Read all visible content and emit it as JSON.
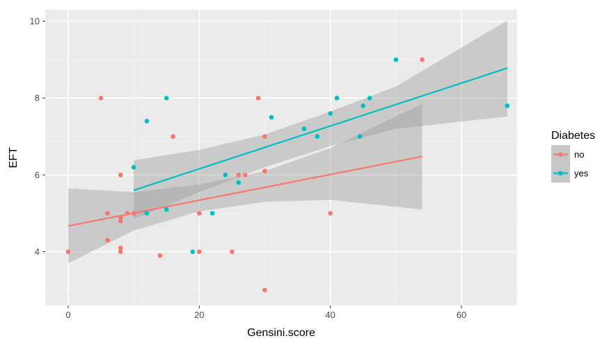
{
  "chart_data": {
    "type": "scatter",
    "xlabel": "Gensini.score",
    "ylabel": "EFT",
    "xlim": [
      -3.5,
      68.5
    ],
    "ylim": [
      2.6,
      10.3
    ],
    "x_ticks": [
      0,
      20,
      40,
      60
    ],
    "y_ticks": [
      4,
      6,
      8,
      10
    ],
    "grid": true,
    "legend": {
      "title": "Diabetes",
      "placement": "right"
    },
    "colors": {
      "no": "#F8766D",
      "yes": "#00BFC4",
      "panel": "#EBEBEB",
      "band": "#999999"
    },
    "series": [
      {
        "name": "no",
        "points": [
          [
            0,
            4.0
          ],
          [
            5,
            8.0
          ],
          [
            6,
            5.0
          ],
          [
            6,
            4.3
          ],
          [
            8,
            6.0
          ],
          [
            8,
            4.9
          ],
          [
            8,
            4.8
          ],
          [
            8,
            4.1
          ],
          [
            8,
            4.0
          ],
          [
            9,
            5.0
          ],
          [
            10,
            5.0
          ],
          [
            14,
            3.9
          ],
          [
            16,
            7.0
          ],
          [
            20,
            5.0
          ],
          [
            20,
            4.0
          ],
          [
            25,
            4.0
          ],
          [
            26,
            6.0
          ],
          [
            27,
            6.0
          ],
          [
            29,
            8.0
          ],
          [
            30,
            7.0
          ],
          [
            30,
            6.1
          ],
          [
            30,
            3.0
          ],
          [
            40,
            5.0
          ],
          [
            54,
            9.0
          ]
        ],
        "fit": {
          "x": [
            0,
            54
          ],
          "y": [
            4.67,
            6.48
          ]
        },
        "band": {
          "x": [
            0,
            10,
            20,
            30,
            40,
            54
          ],
          "lower": [
            3.7,
            4.55,
            5.05,
            5.3,
            5.35,
            5.1
          ],
          "upper": [
            5.65,
            5.55,
            5.75,
            6.1,
            6.7,
            7.85
          ]
        }
      },
      {
        "name": "yes",
        "points": [
          [
            10,
            6.2
          ],
          [
            12,
            7.4
          ],
          [
            12,
            5.0
          ],
          [
            15,
            8.0
          ],
          [
            15,
            5.1
          ],
          [
            19,
            4.0
          ],
          [
            22,
            5.0
          ],
          [
            24,
            6.0
          ],
          [
            26,
            5.8
          ],
          [
            31,
            7.5
          ],
          [
            36,
            7.2
          ],
          [
            38,
            7.0
          ],
          [
            40,
            7.6
          ],
          [
            41,
            8.0
          ],
          [
            44.5,
            7.0
          ],
          [
            45,
            7.8
          ],
          [
            46,
            8.0
          ],
          [
            50,
            9.0
          ],
          [
            67,
            7.8
          ]
        ],
        "fit": {
          "x": [
            10,
            67
          ],
          "y": [
            5.6,
            8.78
          ]
        },
        "band": {
          "x": [
            10,
            20,
            30,
            40,
            50,
            67
          ],
          "lower": [
            4.85,
            5.55,
            6.2,
            6.75,
            7.2,
            7.52
          ],
          "upper": [
            6.38,
            6.65,
            7.05,
            7.65,
            8.3,
            10.02
          ]
        }
      }
    ]
  }
}
